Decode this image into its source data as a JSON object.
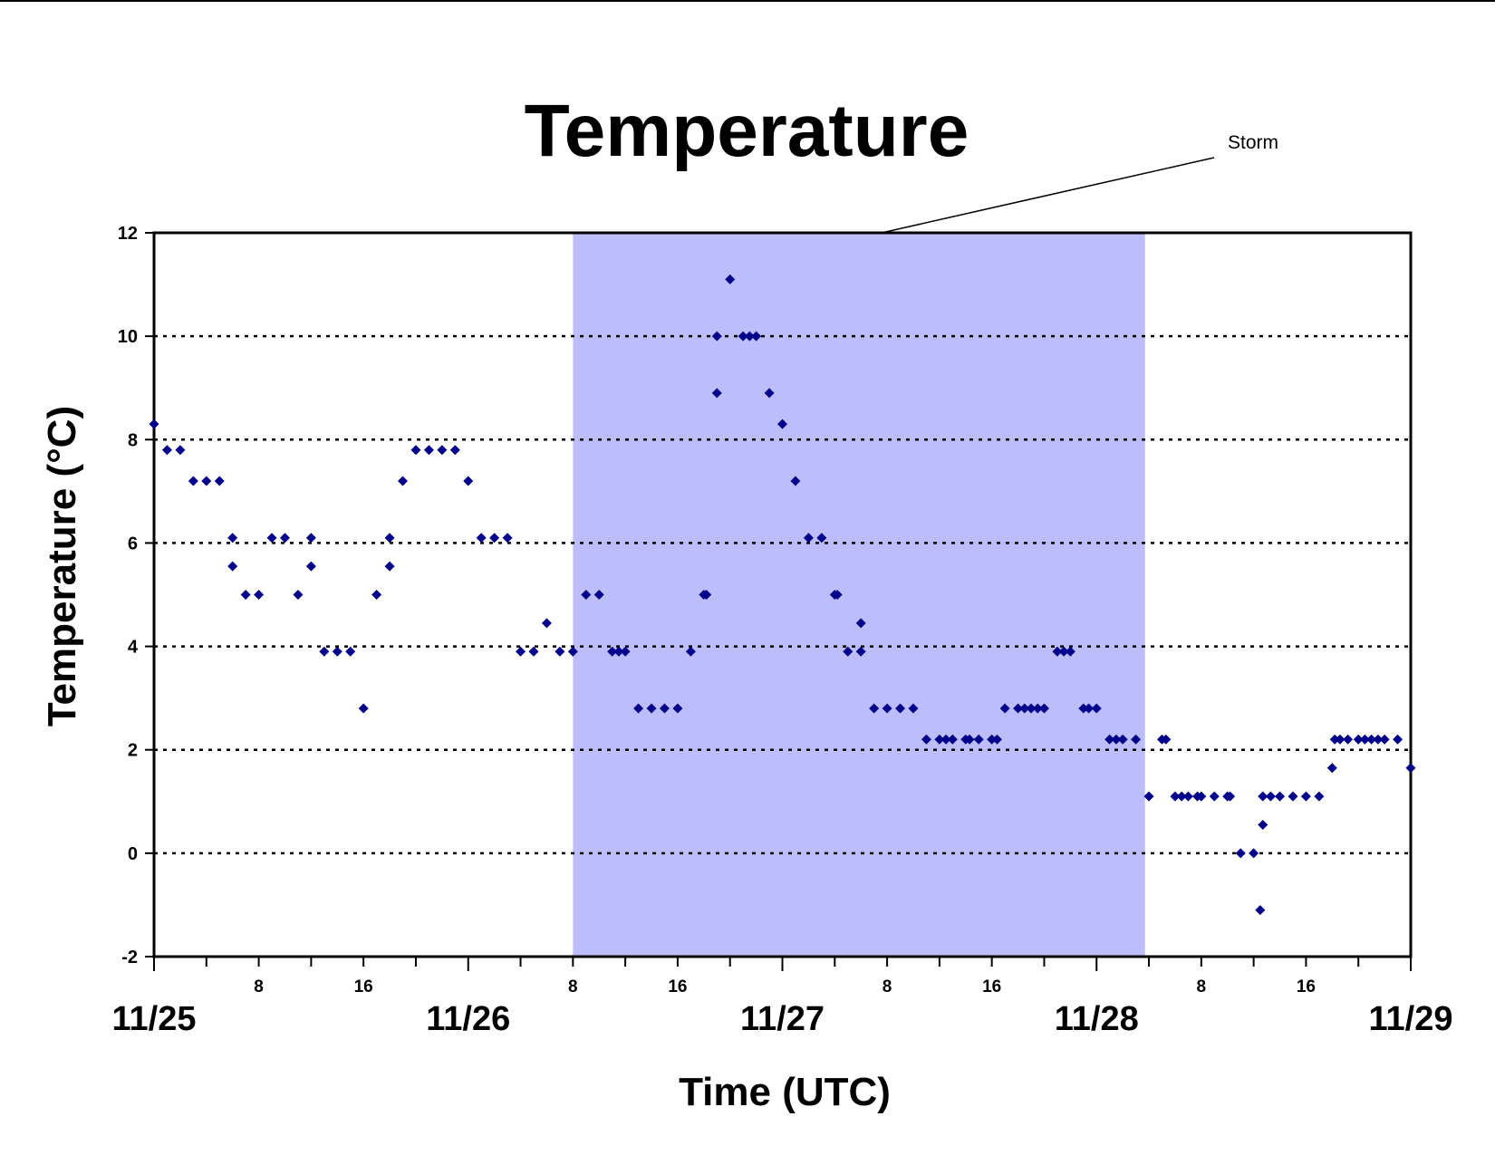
{
  "chart_data": {
    "type": "scatter",
    "title": "Temperature",
    "ylabel": "Temperature (°C)",
    "xlabel": "Time (UTC)",
    "ylim": [
      -2,
      12
    ],
    "yticks": [
      "-2",
      "0",
      "2",
      "4",
      "6",
      "8",
      "10",
      "12"
    ],
    "xlim_hours": [
      0,
      96
    ],
    "day_labels": [
      {
        "hour": 0,
        "label": "11/25"
      },
      {
        "hour": 24,
        "label": "11/26"
      },
      {
        "hour": 48,
        "label": "11/27"
      },
      {
        "hour": 72,
        "label": "11/28"
      },
      {
        "hour": 96,
        "label": "11/29"
      }
    ],
    "hour_labels": [
      {
        "hour": 8,
        "label": "8"
      },
      {
        "hour": 16,
        "label": "16"
      },
      {
        "hour": 32,
        "label": "8"
      },
      {
        "hour": 40,
        "label": "16"
      },
      {
        "hour": 56,
        "label": "8"
      },
      {
        "hour": 64,
        "label": "16"
      },
      {
        "hour": 80,
        "label": "8"
      },
      {
        "hour": 88,
        "label": "16"
      }
    ],
    "grid": "dotted horizontal",
    "marker_color": "#00008B",
    "storm_color": "#BDBDFB",
    "storm_annotation": {
      "label": "Storm",
      "start_hour": 32,
      "end_hour": 75.7
    },
    "series": [
      {
        "points": [
          [
            0,
            8.3
          ],
          [
            1,
            7.8
          ],
          [
            2,
            7.8
          ],
          [
            3,
            7.2
          ],
          [
            4,
            7.2
          ],
          [
            5,
            7.2
          ],
          [
            6,
            6.1
          ],
          [
            6,
            5.55
          ],
          [
            7,
            5.0
          ],
          [
            8,
            5.0
          ],
          [
            9,
            6.1
          ],
          [
            10,
            6.1
          ],
          [
            11,
            5.0
          ],
          [
            12,
            6.1
          ],
          [
            12,
            5.55
          ],
          [
            13,
            3.9
          ],
          [
            14,
            3.9
          ],
          [
            15,
            3.9
          ],
          [
            16,
            2.8
          ],
          [
            17,
            5.0
          ],
          [
            18,
            6.1
          ],
          [
            18,
            5.55
          ],
          [
            19,
            7.2
          ],
          [
            20,
            7.8
          ],
          [
            21,
            7.8
          ],
          [
            22,
            7.8
          ],
          [
            23,
            7.8
          ],
          [
            24,
            7.2
          ],
          [
            25,
            6.1
          ],
          [
            26,
            6.1
          ],
          [
            27,
            6.1
          ],
          [
            28,
            3.9
          ],
          [
            29,
            3.9
          ],
          [
            30,
            4.45
          ],
          [
            31,
            3.9
          ],
          [
            32,
            3.9
          ],
          [
            33,
            5.0
          ],
          [
            34,
            5.0
          ],
          [
            35,
            3.9
          ],
          [
            35.5,
            3.9
          ],
          [
            36,
            3.9
          ],
          [
            37,
            2.8
          ],
          [
            38,
            2.8
          ],
          [
            39,
            2.8
          ],
          [
            40,
            2.8
          ],
          [
            41,
            3.9
          ],
          [
            42,
            5.0
          ],
          [
            42.2,
            5.0
          ],
          [
            43,
            10.0
          ],
          [
            43,
            8.9
          ],
          [
            44,
            11.1
          ],
          [
            45,
            10.0
          ],
          [
            45.5,
            10.0
          ],
          [
            46,
            10.0
          ],
          [
            47,
            8.9
          ],
          [
            48,
            8.3
          ],
          [
            49,
            7.2
          ],
          [
            50,
            6.1
          ],
          [
            51,
            6.1
          ],
          [
            52,
            5.0
          ],
          [
            52.2,
            5.0
          ],
          [
            53,
            3.9
          ],
          [
            54,
            3.9
          ],
          [
            54,
            4.45
          ],
          [
            55,
            2.8
          ],
          [
            56,
            2.8
          ],
          [
            57,
            2.8
          ],
          [
            58,
            2.8
          ],
          [
            59,
            2.2
          ],
          [
            60,
            2.2
          ],
          [
            60.5,
            2.2
          ],
          [
            61,
            2.2
          ],
          [
            62,
            2.2
          ],
          [
            62.3,
            2.2
          ],
          [
            63,
            2.2
          ],
          [
            64,
            2.2
          ],
          [
            64.4,
            2.2
          ],
          [
            65,
            2.8
          ],
          [
            66,
            2.8
          ],
          [
            66.5,
            2.8
          ],
          [
            67,
            2.8
          ],
          [
            67.5,
            2.8
          ],
          [
            68,
            2.8
          ],
          [
            69,
            3.9
          ],
          [
            69.5,
            3.9
          ],
          [
            70,
            3.9
          ],
          [
            71,
            2.8
          ],
          [
            71.4,
            2.8
          ],
          [
            72,
            2.8
          ],
          [
            73,
            2.2
          ],
          [
            73.5,
            2.2
          ],
          [
            74,
            2.2
          ],
          [
            75,
            2.2
          ],
          [
            76,
            1.1
          ],
          [
            77,
            2.2
          ],
          [
            77.3,
            2.2
          ],
          [
            78,
            1.1
          ],
          [
            78.5,
            1.1
          ],
          [
            79,
            1.1
          ],
          [
            79.7,
            1.1
          ],
          [
            80,
            1.1
          ],
          [
            81,
            1.1
          ],
          [
            82,
            1.1
          ],
          [
            82.2,
            1.1
          ],
          [
            83,
            0.0
          ],
          [
            84,
            0.0
          ],
          [
            84.5,
            -1.1
          ],
          [
            84.7,
            1.1
          ],
          [
            84.7,
            0.55
          ],
          [
            85.3,
            1.1
          ],
          [
            86,
            1.1
          ],
          [
            87,
            1.1
          ],
          [
            88,
            1.1
          ],
          [
            89,
            1.1
          ],
          [
            90,
            1.65
          ],
          [
            90.2,
            2.2
          ],
          [
            90.6,
            2.2
          ],
          [
            91.2,
            2.2
          ],
          [
            92,
            2.2
          ],
          [
            92.5,
            2.2
          ],
          [
            93,
            2.2
          ],
          [
            93.5,
            2.2
          ],
          [
            94,
            2.2
          ],
          [
            95,
            2.2
          ],
          [
            96,
            1.65
          ]
        ]
      }
    ]
  }
}
